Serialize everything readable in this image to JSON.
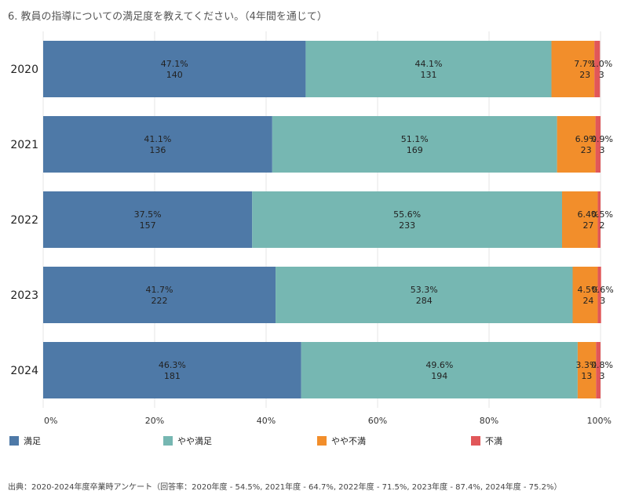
{
  "title": "6. 教員の指導についての満足度を教えてください。（4年間を通じて）",
  "source": "出典：2020-2024年度卒業時アンケート（回答率：2020年度 - 54.5%, 2021年度 - 64.7%, 2022年度 - 71.5%, 2023年度 - 87.4%, 2024年度 - 75.2%）",
  "chart_data": {
    "type": "bar",
    "orientation": "horizontal",
    "stacked": true,
    "normalized": true,
    "categories": [
      "2020",
      "2021",
      "2022",
      "2023",
      "2024"
    ],
    "xlim": [
      0,
      100
    ],
    "xticks": [
      "0%",
      "20%",
      "40%",
      "60%",
      "80%",
      "100%"
    ],
    "grid": true,
    "legend_position": "bottom",
    "series": [
      {
        "name": "満足",
        "color": "#4e79a7",
        "percent_labels": [
          "47.1%",
          "41.1%",
          "37.5%",
          "41.7%",
          "46.3%"
        ],
        "values": [
          47.1,
          41.1,
          37.5,
          41.7,
          46.3
        ],
        "counts": [
          "140",
          "136",
          "157",
          "222",
          "181"
        ]
      },
      {
        "name": "やや満足",
        "color": "#76b7b2",
        "percent_labels": [
          "44.1%",
          "51.1%",
          "55.6%",
          "53.3%",
          "49.6%"
        ],
        "values": [
          44.1,
          51.1,
          55.6,
          53.3,
          49.6
        ],
        "counts": [
          "131",
          "169",
          "233",
          "284",
          "194"
        ]
      },
      {
        "name": "やや不満",
        "color": "#f28e2b",
        "percent_labels": [
          "7.7%",
          "6.9%",
          "6.4%",
          "4.5%",
          "3.3%"
        ],
        "values": [
          7.7,
          6.9,
          6.4,
          4.5,
          3.3
        ],
        "counts": [
          "23",
          "23",
          "27",
          "24",
          "13"
        ]
      },
      {
        "name": "不満",
        "color": "#e15759",
        "percent_labels": [
          "1.0%",
          "0.9%",
          "0.5%",
          "0.6%",
          "0.8%"
        ],
        "values": [
          1.0,
          0.9,
          0.5,
          0.6,
          0.8
        ],
        "counts": [
          "3",
          "3",
          "2",
          "3",
          "3"
        ]
      }
    ]
  }
}
